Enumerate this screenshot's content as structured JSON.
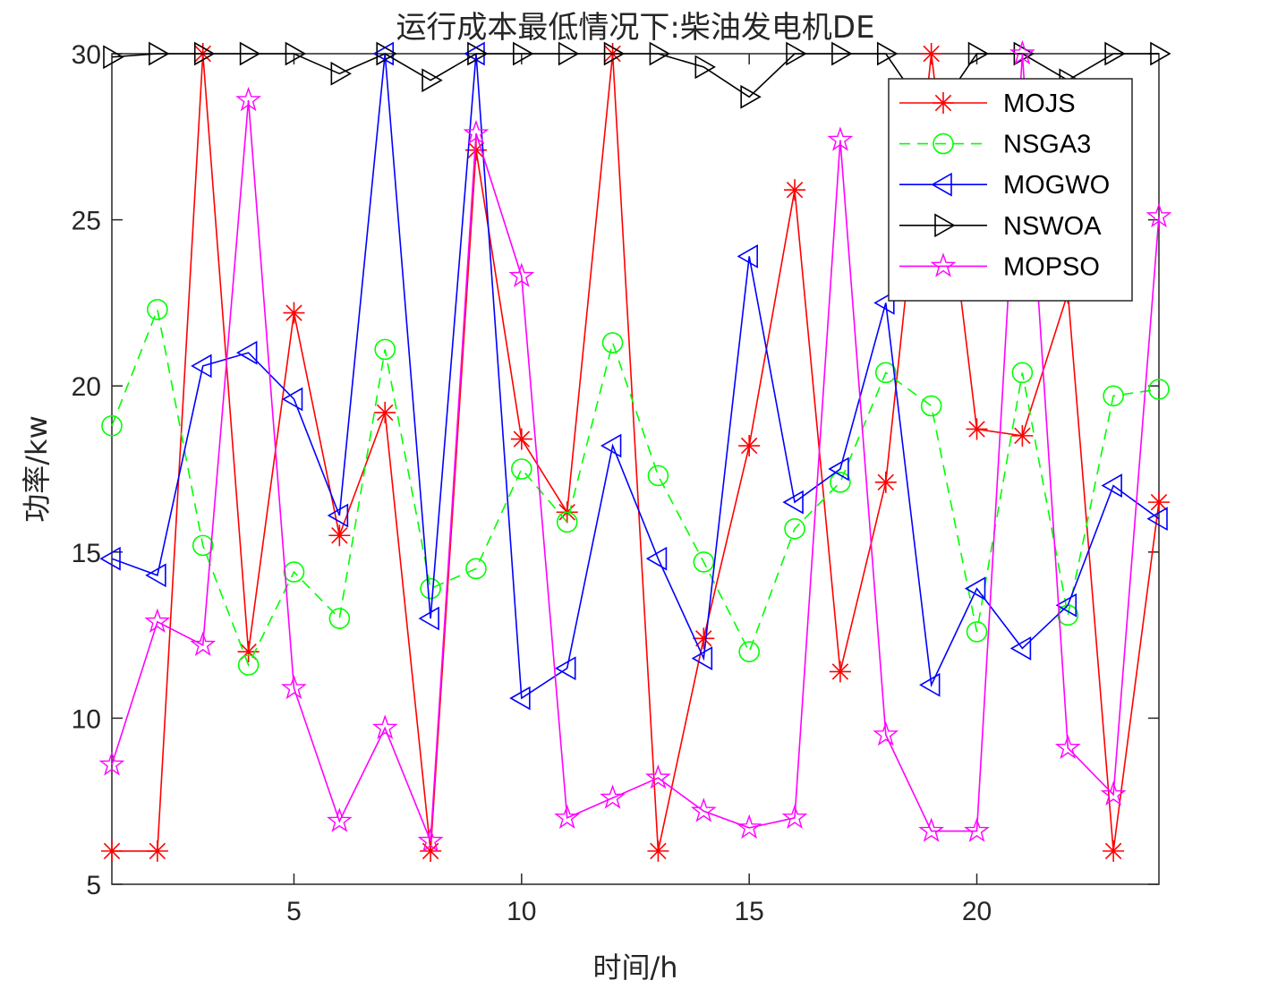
{
  "chart_data": {
    "type": "line",
    "title": "运行成本最低情况下:柴油发电机DE",
    "xlabel": "时间/h",
    "ylabel": "功率/kw",
    "xlim": [
      1,
      24
    ],
    "ylim": [
      5,
      30
    ],
    "xticks": [
      5,
      10,
      15,
      20
    ],
    "yticks": [
      5,
      10,
      15,
      20,
      25,
      30
    ],
    "legend_position": "top-right",
    "x": [
      1,
      2,
      3,
      4,
      5,
      6,
      7,
      8,
      9,
      10,
      11,
      12,
      13,
      14,
      15,
      16,
      17,
      18,
      19,
      20,
      21,
      22,
      23,
      24
    ],
    "series": [
      {
        "name": "MOJS",
        "color": "#ff0000",
        "dash": false,
        "marker": "asterisk",
        "values": [
          6,
          6,
          30,
          12,
          22.2,
          15.5,
          19.2,
          6,
          27.1,
          18.4,
          16.2,
          30,
          6,
          12.4,
          18.2,
          25.9,
          11.4,
          17.1,
          30,
          18.7,
          18.5,
          22.8,
          6,
          16.5
        ]
      },
      {
        "name": "NSGA3",
        "color": "#00ff00",
        "dash": true,
        "marker": "circle",
        "values": [
          18.8,
          22.3,
          15.2,
          11.6,
          14.4,
          13,
          21.1,
          13.9,
          14.5,
          17.5,
          15.9,
          21.3,
          17.3,
          14.7,
          12,
          15.7,
          17.1,
          20.4,
          19.4,
          12.6,
          20.4,
          13.1,
          19.7,
          19.9
        ]
      },
      {
        "name": "MOGWO",
        "color": "#0000ff",
        "dash": false,
        "marker": "triangle-left",
        "values": [
          14.8,
          14.3,
          20.6,
          21,
          19.6,
          16.1,
          30,
          13,
          30,
          10.6,
          11.5,
          18.2,
          14.8,
          11.8,
          23.9,
          16.5,
          17.5,
          22.5,
          11,
          13.9,
          12.1,
          13.4,
          17,
          16
        ]
      },
      {
        "name": "NSWOA",
        "color": "#000000",
        "dash": false,
        "marker": "triangle-right",
        "values": [
          29.9,
          30,
          30,
          30,
          30,
          29.4,
          30,
          29.2,
          30,
          30,
          30,
          30,
          30,
          29.6,
          28.7,
          30,
          30,
          30,
          28,
          30,
          30,
          29.2,
          30,
          30
        ]
      },
      {
        "name": "MOPSO",
        "color": "#ff00ff",
        "dash": false,
        "marker": "pentagram",
        "values": [
          8.6,
          12.9,
          12.2,
          28.6,
          10.9,
          6.9,
          9.7,
          6.3,
          27.6,
          23.3,
          7,
          7.6,
          8.2,
          7.2,
          6.7,
          7,
          27.4,
          9.5,
          6.6,
          6.6,
          30,
          9.1,
          7.7,
          25.1
        ]
      }
    ]
  }
}
